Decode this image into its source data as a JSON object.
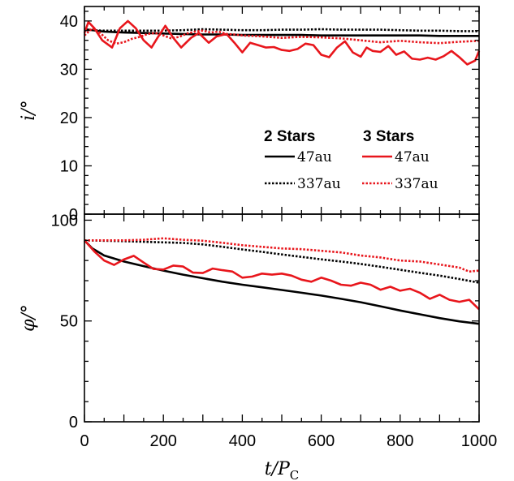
{
  "chart_data": [
    {
      "type": "line",
      "panel": "top",
      "ylabel": "i/°",
      "xlabel": "",
      "xlim": [
        0,
        1000
      ],
      "ylim": [
        0,
        43
      ],
      "yticks": [
        0,
        10,
        20,
        30,
        40
      ],
      "xticks": [
        0,
        200,
        400,
        600,
        800,
        1000
      ],
      "show_x_tick_labels": false,
      "legend": {
        "placement": "lower-right",
        "groups": [
          "2 Stars",
          "3 Stars"
        ],
        "entries": [
          {
            "group": "2 Stars",
            "label": "47au",
            "color": "#000000",
            "style": "solid"
          },
          {
            "group": "3 Stars",
            "label": "47au",
            "color": "#e8161c",
            "style": "solid"
          },
          {
            "group": "2 Stars",
            "label": "337au",
            "color": "#000000",
            "style": "dotted"
          },
          {
            "group": "3 Stars",
            "label": "337au",
            "color": "#e8161c",
            "style": "dotted"
          }
        ]
      },
      "series": [
        {
          "name": "2 Stars 47au",
          "color": "#000000",
          "style": "solid",
          "x": [
            0,
            50,
            100,
            150,
            200,
            250,
            300,
            350,
            400,
            450,
            500,
            550,
            600,
            650,
            700,
            750,
            800,
            850,
            900,
            950,
            1000
          ],
          "y": [
            38.3,
            37.8,
            37.6,
            37.5,
            37.4,
            37.3,
            37.2,
            37.2,
            37.1,
            37.1,
            37.1,
            37.1,
            37.0,
            37.0,
            37.0,
            37.0,
            37.0,
            37.0,
            36.9,
            36.9,
            36.9
          ]
        },
        {
          "name": "2 Stars 337au",
          "color": "#000000",
          "style": "dotted",
          "x": [
            0,
            50,
            100,
            150,
            200,
            250,
            300,
            350,
            400,
            450,
            500,
            550,
            600,
            650,
            700,
            750,
            800,
            850,
            900,
            950,
            1000
          ],
          "y": [
            38.2,
            38.0,
            38.0,
            38.0,
            38.0,
            38.1,
            38.3,
            38.2,
            38.1,
            38.1,
            38.2,
            38.2,
            38.3,
            38.2,
            38.2,
            38.2,
            38.1,
            38.0,
            38.0,
            37.9,
            37.9
          ]
        },
        {
          "name": "3 Stars 47au",
          "color": "#e8161c",
          "style": "solid",
          "x": [
            0,
            10,
            25,
            45,
            70,
            90,
            110,
            130,
            150,
            170,
            185,
            205,
            225,
            245,
            270,
            290,
            315,
            335,
            360,
            380,
            400,
            420,
            440,
            460,
            480,
            500,
            520,
            540,
            560,
            580,
            600,
            620,
            640,
            660,
            680,
            700,
            715,
            730,
            750,
            770,
            790,
            810,
            830,
            850,
            870,
            890,
            910,
            930,
            950,
            970,
            990,
            1000
          ],
          "y": [
            37.5,
            39.8,
            38.5,
            36.0,
            34.5,
            38.5,
            40.0,
            38.5,
            36.0,
            34.5,
            36.5,
            39.0,
            36.5,
            34.5,
            36.5,
            37.5,
            35.5,
            36.8,
            37.3,
            35.5,
            33.5,
            35.5,
            35.0,
            34.5,
            34.6,
            34.0,
            33.8,
            34.2,
            35.3,
            35.0,
            33.0,
            32.5,
            34.5,
            35.8,
            33.5,
            32.6,
            34.5,
            33.8,
            33.6,
            34.8,
            33.0,
            33.7,
            32.2,
            32.0,
            32.4,
            32.0,
            32.7,
            33.8,
            32.5,
            31.0,
            31.8,
            33.8
          ]
        },
        {
          "name": "3 Stars 337au",
          "color": "#e8161c",
          "style": "dotted",
          "x": [
            0,
            20,
            40,
            60,
            80,
            100,
            120,
            140,
            160,
            180,
            200,
            220,
            240,
            260,
            280,
            300,
            320,
            340,
            360,
            380,
            400,
            450,
            500,
            550,
            600,
            650,
            700,
            750,
            800,
            850,
            900,
            950,
            1000
          ],
          "y": [
            37.0,
            38.5,
            37.5,
            36.0,
            35.3,
            35.6,
            36.3,
            36.7,
            37.3,
            37.5,
            37.0,
            36.4,
            36.7,
            37.4,
            37.8,
            38.0,
            37.6,
            37.8,
            37.3,
            37.2,
            37.0,
            36.8,
            36.5,
            36.7,
            36.6,
            36.4,
            36.0,
            35.6,
            35.9,
            35.6,
            35.4,
            35.7,
            35.9
          ]
        }
      ]
    },
    {
      "type": "line",
      "panel": "bottom",
      "ylabel": "φ/°",
      "xlabel": "t/P_C",
      "xlim": [
        0,
        1000
      ],
      "ylim": [
        0,
        103
      ],
      "yticks": [
        0,
        50,
        100
      ],
      "xticks": [
        0,
        200,
        400,
        600,
        800,
        1000
      ],
      "show_x_tick_labels": true,
      "series": [
        {
          "name": "2 Stars 47au",
          "color": "#000000",
          "style": "solid",
          "x": [
            0,
            20,
            50,
            100,
            150,
            200,
            250,
            300,
            350,
            400,
            450,
            500,
            550,
            600,
            650,
            700,
            750,
            800,
            850,
            900,
            950,
            1000
          ],
          "y": [
            90.0,
            86.0,
            82.5,
            79.5,
            77.2,
            75.0,
            73.0,
            71.2,
            69.5,
            68.0,
            66.7,
            65.4,
            64.0,
            62.6,
            61.0,
            59.3,
            57.3,
            55.2,
            53.3,
            51.4,
            49.8,
            48.6
          ]
        },
        {
          "name": "2 Stars 337au",
          "color": "#000000",
          "style": "dotted",
          "x": [
            0,
            50,
            100,
            150,
            200,
            250,
            300,
            350,
            400,
            450,
            500,
            550,
            600,
            650,
            700,
            750,
            800,
            850,
            900,
            950,
            1000
          ],
          "y": [
            90.0,
            89.8,
            89.6,
            89.3,
            89.0,
            88.7,
            88.0,
            86.8,
            85.5,
            84.3,
            83.0,
            81.8,
            80.6,
            79.5,
            78.3,
            76.9,
            75.4,
            73.9,
            72.5,
            70.8,
            69.0
          ]
        },
        {
          "name": "3 Stars 47au",
          "color": "#e8161c",
          "style": "solid",
          "x": [
            0,
            25,
            50,
            75,
            100,
            125,
            150,
            175,
            200,
            225,
            250,
            275,
            300,
            325,
            350,
            375,
            400,
            425,
            450,
            475,
            500,
            525,
            550,
            575,
            600,
            625,
            650,
            675,
            700,
            725,
            750,
            775,
            800,
            825,
            850,
            875,
            900,
            925,
            950,
            975,
            1000
          ],
          "y": [
            90.0,
            84.5,
            80.0,
            77.8,
            80.5,
            82.3,
            79.0,
            75.8,
            75.5,
            77.5,
            77.0,
            74.0,
            73.8,
            76.0,
            75.2,
            74.5,
            71.5,
            72.0,
            73.5,
            73.0,
            73.5,
            72.5,
            70.5,
            69.5,
            71.5,
            70.0,
            68.0,
            67.5,
            69.0,
            68.0,
            65.5,
            67.0,
            65.0,
            66.0,
            64.0,
            61.0,
            63.0,
            60.5,
            59.5,
            60.5,
            55.8
          ]
        },
        {
          "name": "3 Stars 337au",
          "color": "#e8161c",
          "style": "dotted",
          "x": [
            0,
            50,
            100,
            150,
            200,
            250,
            300,
            350,
            400,
            450,
            500,
            550,
            600,
            650,
            700,
            750,
            800,
            850,
            900,
            950,
            975,
            1000
          ],
          "y": [
            90.0,
            90.0,
            90.0,
            90.3,
            91.0,
            90.3,
            89.8,
            88.8,
            87.6,
            86.8,
            86.0,
            85.6,
            84.8,
            84.0,
            82.5,
            81.5,
            80.0,
            79.5,
            78.0,
            76.5,
            74.5,
            75.0
          ]
        }
      ]
    }
  ]
}
